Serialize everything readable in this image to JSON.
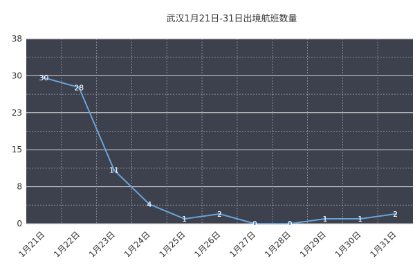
{
  "chart_data": {
    "type": "line",
    "title": "武汉1月21日-31日出境航班数量",
    "categories": [
      "1月21日",
      "1月22日",
      "1月23日",
      "1月24日",
      "1月25日",
      "1月26日",
      "1月27日",
      "1月28日",
      "1月29日",
      "1月30日",
      "1月31日"
    ],
    "series": [
      {
        "values": [
          30,
          28,
          11,
          4,
          1,
          2,
          0,
          0,
          1,
          1,
          2
        ]
      }
    ],
    "data_labels": [
      "30",
      "28",
      "11",
      "4",
      "1",
      "2",
      "0",
      "0",
      "1",
      "1",
      "2"
    ],
    "y_ticks": [
      "0",
      "8",
      "15",
      "23",
      "30",
      "38"
    ],
    "y_tick_values": [
      0,
      7.6,
      15.2,
      22.8,
      30.4,
      38
    ],
    "ylim": [
      0,
      38
    ],
    "xlabel": "",
    "ylabel": "",
    "grid": true,
    "legend": "none",
    "colors": {
      "plot_background": "#3d404d",
      "line": "#69a4d8",
      "grid_major": "#d7d7d7",
      "grid_minor": "#8a8c96",
      "label_text": "#ffffff",
      "axis_text": "#333333"
    }
  }
}
